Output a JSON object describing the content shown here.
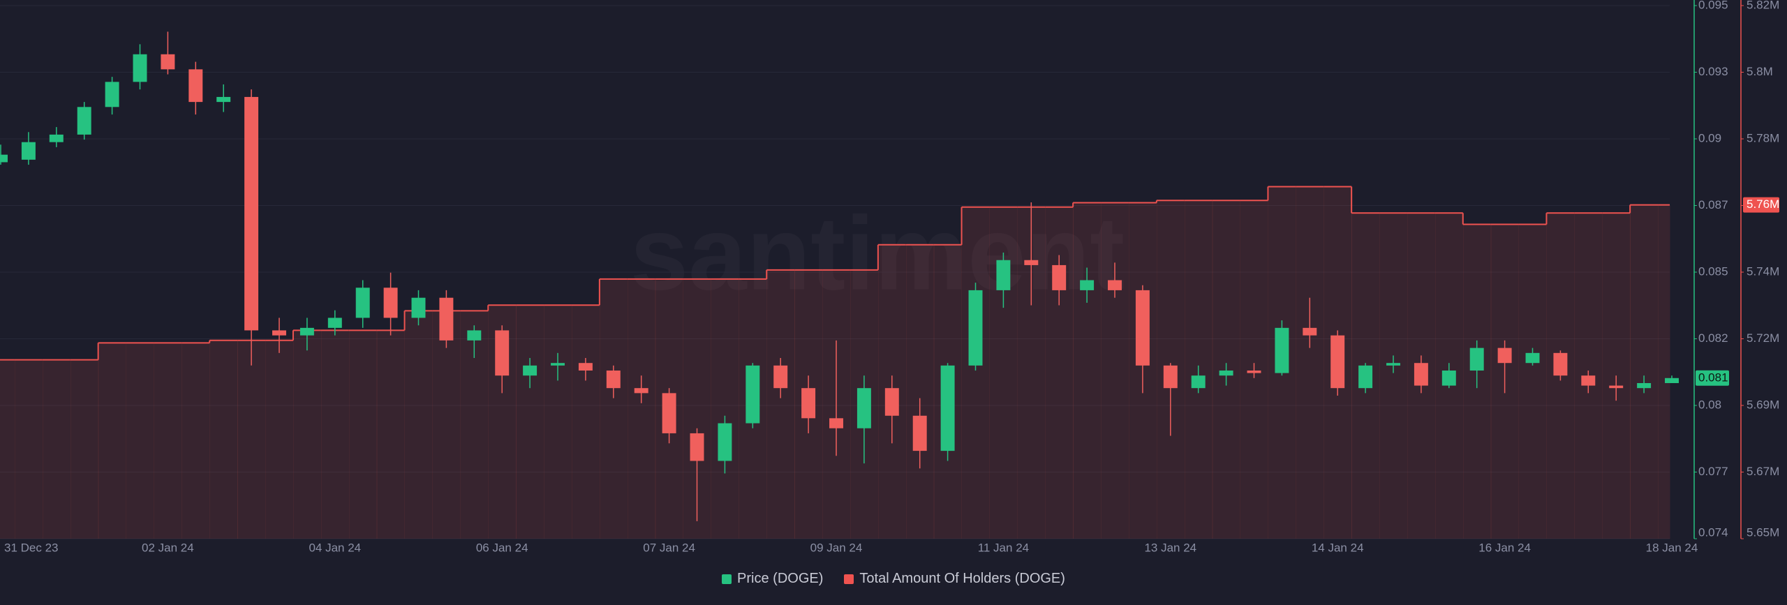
{
  "chart_data": {
    "type": "candlestick",
    "watermark": "santiment",
    "categories": [
      "31 Dec 23",
      null,
      null,
      null,
      null,
      null,
      "02 Jan 24",
      null,
      null,
      null,
      null,
      null,
      "04 Jan 24",
      null,
      null,
      null,
      null,
      null,
      "06 Jan 24",
      null,
      null,
      null,
      null,
      null,
      "07 Jan 24",
      null,
      null,
      null,
      null,
      null,
      "09 Jan 24",
      null,
      null,
      null,
      null,
      null,
      "11 Jan 24",
      null,
      null,
      null,
      null,
      null,
      "13 Jan 24",
      null,
      null,
      null,
      null,
      null,
      "14 Jan 24",
      null,
      null,
      null,
      null,
      null,
      "16 Jan 24",
      null,
      null,
      null,
      null,
      null,
      "18 Jan 24"
    ],
    "series": [
      {
        "name": "Price (DOGE)",
        "type": "candlestick",
        "color": "#26c281",
        "down_color": "#f0605d",
        "open": [
          0.0892,
          0.0893,
          0.09,
          0.0903,
          0.0914,
          0.0924,
          0.0935,
          0.0929,
          0.0916,
          0.0918,
          0.0825,
          0.0823,
          0.0826,
          0.083,
          0.0842,
          0.083,
          0.0838,
          0.0821,
          0.0825,
          0.0807,
          0.0811,
          0.0812,
          0.0809,
          0.0802,
          0.08,
          0.0784,
          0.0773,
          0.0788,
          0.0811,
          0.0802,
          0.079,
          0.0786,
          0.0802,
          0.0791,
          0.0777,
          0.0811,
          0.0841,
          0.0853,
          0.0851,
          0.0841,
          0.0845,
          0.0841,
          0.0811,
          0.0802,
          0.0807,
          0.0809,
          0.0808,
          0.0826,
          0.0823,
          0.0802,
          0.0811,
          0.0812,
          0.0803,
          0.0809,
          0.0818,
          0.0812,
          0.0816,
          0.0807,
          0.0803,
          0.0802,
          0.0804
        ],
        "high": [
          0.0899,
          0.0904,
          0.0906,
          0.0916,
          0.0926,
          0.0939,
          0.0944,
          0.0932,
          0.0923,
          0.0921,
          0.083,
          0.083,
          0.0833,
          0.0845,
          0.0848,
          0.0841,
          0.0841,
          0.0827,
          0.0827,
          0.0814,
          0.0816,
          0.0814,
          0.0811,
          0.0807,
          0.0802,
          0.0786,
          0.0791,
          0.0812,
          0.0814,
          0.0807,
          0.0821,
          0.0807,
          0.0807,
          0.0798,
          0.0812,
          0.0844,
          0.0856,
          0.0876,
          0.0855,
          0.085,
          0.0852,
          0.0843,
          0.0812,
          0.0811,
          0.0812,
          0.0812,
          0.0829,
          0.0838,
          0.0825,
          0.0812,
          0.0815,
          0.0815,
          0.0812,
          0.0821,
          0.0821,
          0.0818,
          0.0817,
          0.0809,
          0.0807,
          0.0807,
          0.0807
        ],
        "low": [
          0.0891,
          0.0891,
          0.0898,
          0.0901,
          0.0911,
          0.0921,
          0.0927,
          0.0911,
          0.0912,
          0.0811,
          0.0816,
          0.0817,
          0.0823,
          0.0826,
          0.0823,
          0.0827,
          0.0818,
          0.0814,
          0.08,
          0.0802,
          0.0805,
          0.0805,
          0.0798,
          0.0796,
          0.078,
          0.0749,
          0.0768,
          0.0786,
          0.0798,
          0.0784,
          0.0775,
          0.0772,
          0.078,
          0.077,
          0.0773,
          0.0809,
          0.0834,
          0.0835,
          0.0835,
          0.0836,
          0.0838,
          0.08,
          0.0783,
          0.08,
          0.0803,
          0.0806,
          0.0807,
          0.0818,
          0.0799,
          0.08,
          0.0808,
          0.08,
          0.0802,
          0.0802,
          0.08,
          0.0811,
          0.0805,
          0.08,
          0.0797,
          0.08,
          0.0804
        ],
        "close": [
          0.0895,
          0.09,
          0.0903,
          0.0914,
          0.0924,
          0.0935,
          0.0929,
          0.0916,
          0.0918,
          0.0825,
          0.0823,
          0.0826,
          0.083,
          0.0842,
          0.083,
          0.0838,
          0.0821,
          0.0825,
          0.0807,
          0.0811,
          0.0812,
          0.0809,
          0.0802,
          0.08,
          0.0784,
          0.0773,
          0.0788,
          0.0811,
          0.0802,
          0.079,
          0.0786,
          0.0802,
          0.0791,
          0.0777,
          0.0811,
          0.0841,
          0.0853,
          0.0851,
          0.0841,
          0.0845,
          0.0841,
          0.0811,
          0.0802,
          0.0807,
          0.0809,
          0.0808,
          0.0826,
          0.0823,
          0.0802,
          0.0811,
          0.0812,
          0.0803,
          0.0809,
          0.0818,
          0.0812,
          0.0816,
          0.0807,
          0.0803,
          0.0802,
          0.0804,
          0.0806
        ]
      },
      {
        "name": "Total Amount Of Holders (DOGE)",
        "type": "line",
        "step": true,
        "axis": "y2",
        "color": "#ef5350",
        "values": [
          5708900,
          5708900,
          5708900,
          5708900,
          5714300,
          5714300,
          5714300,
          5714300,
          5715100,
          5715100,
          5715100,
          5718300,
          5718300,
          5718300,
          5718300,
          5724500,
          5724500,
          5724500,
          5726300,
          5726300,
          5726300,
          5726300,
          5734600,
          5734600,
          5734600,
          5734600,
          5734600,
          5734600,
          5737500,
          5737500,
          5737500,
          5737500,
          5745500,
          5745500,
          5745500,
          5757500,
          5757500,
          5757500,
          5757500,
          5758900,
          5758900,
          5758900,
          5759600,
          5759600,
          5759600,
          5759600,
          5764000,
          5764000,
          5764000,
          5755600,
          5755600,
          5755600,
          5755600,
          5752000,
          5752000,
          5752000,
          5755600,
          5755600,
          5755600,
          5758200,
          5758200
        ]
      }
    ],
    "ylim": [
      0.0742,
      0.09544
    ],
    "yticks": [
      {
        "value": 0.0742,
        "label": "0.074"
      },
      {
        "value": 0.076855,
        "label": "0.077"
      },
      {
        "value": 0.07951,
        "label": "0.08"
      },
      {
        "value": 0.082165,
        "label": "0.082"
      },
      {
        "value": 0.08482,
        "label": "0.085"
      },
      {
        "value": 0.087475,
        "label": "0.087"
      },
      {
        "value": 0.09013,
        "label": "0.09"
      },
      {
        "value": 0.092785,
        "label": "0.093"
      },
      {
        "value": 0.09544,
        "label": "0.095"
      }
    ],
    "y2lim": [
      5652000,
      5821600
    ],
    "y2ticks": [
      {
        "value": 5652000,
        "label": "5.65M"
      },
      {
        "value": 5673200,
        "label": "5.67M"
      },
      {
        "value": 5694400,
        "label": "5.69M"
      },
      {
        "value": 5715600,
        "label": "5.72M"
      },
      {
        "value": 5736800,
        "label": "5.74M"
      },
      {
        "value": 5758000,
        "label": "5.76M"
      },
      {
        "value": 5779200,
        "label": "5.78M"
      },
      {
        "value": 5800400,
        "label": "5.8M"
      },
      {
        "value": 5821600,
        "label": "5.82M"
      }
    ],
    "price_badge": {
      "value": 0.0806,
      "label": "0.081"
    },
    "holders_badge": {
      "value": 5758200,
      "label": "5.76M"
    },
    "grid": true,
    "legend": "bottom"
  }
}
